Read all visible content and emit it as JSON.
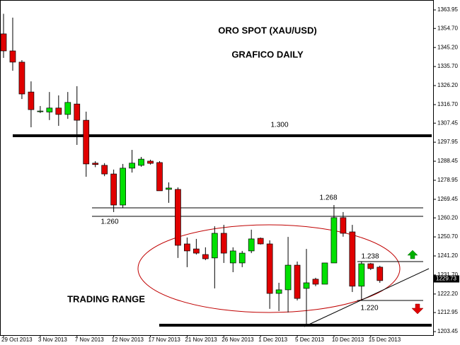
{
  "chart_data": {
    "type": "candlestick",
    "title": "ORO SPOT (XAU/USD)",
    "subtitle": "GRAFICO DAILY",
    "annotations": [
      "1.300",
      "1.268",
      "1.260",
      "1.238",
      "1.220",
      "TRADING RANGE"
    ],
    "categories": [
      "29 Oct 2013",
      null,
      null,
      null,
      "3 Nov 2013",
      null,
      null,
      null,
      "7 Nov 2013",
      null,
      null,
      null,
      "12 Nov 2013",
      null,
      null,
      null,
      "17 Nov 2013",
      null,
      null,
      null,
      "21 Nov 2013",
      null,
      null,
      null,
      "26 Nov 2013",
      null,
      null,
      null,
      "1 Dec 2013",
      null,
      null,
      null,
      "5 Dec 2013",
      null,
      null,
      null,
      "10 Dec 2013",
      null,
      null,
      null,
      "15 Dec 2013",
      null
    ],
    "open": [
      1352,
      1343.5,
      1337.9,
      1323,
      1313.5,
      1313,
      1315,
      1311.8,
      1317,
      1308.9,
      1287.5,
      1286.4,
      1282.1,
      1266.6,
      1285,
      1286.4,
      1288.5,
      1287.8,
      1274.4,
      1274.4,
      1247.2,
      1244.7,
      1241.9,
      1240.2,
      1252.5,
      1237.7,
      1237.7,
      1243.7,
      1250,
      1247.2,
      1222.5,
      1224.3,
      1236.6,
      1225,
      1229.6,
      1227.1,
      1237.7,
      1260.3,
      1253.2,
      1226.1,
      1237.3,
      1235.6
    ],
    "high": [
      1362,
      1360.1,
      1338.9,
      1328.3,
      1316,
      1323,
      1321.3,
      1323,
      1325.9,
      1313.2,
      1288.5,
      1287.5,
      1284.3,
      1287.1,
      1294.1,
      1290.6,
      1289.2,
      1288.5,
      1277.9,
      1275.4,
      1250.4,
      1249.7,
      1245.5,
      1256,
      1256.7,
      1245.5,
      1243.7,
      1254.3,
      1250.4,
      1249,
      1227.8,
      1250.7,
      1238.4,
      1244.7,
      1230.3,
      1237.7,
      1266.6,
      1263.1,
      1256.7,
      1238.4,
      1237.7,
      1236.3
    ],
    "low": [
      1340,
      1333.6,
      1319.5,
      1305.4,
      1312.5,
      1309,
      1306.1,
      1309.6,
      1296.6,
      1280.7,
      1285.5,
      1281,
      1263.1,
      1265.2,
      1282.8,
      1285.7,
      1286.8,
      1273.7,
      1267.7,
      1240.2,
      1235.6,
      1241.9,
      1239.1,
      1225,
      1237.7,
      1233.1,
      1235.6,
      1242.6,
      1246.9,
      1214.8,
      1213.7,
      1213,
      1219,
      1206.7,
      1226.1,
      1227.1,
      1237.7,
      1250.8,
      1223.2,
      1219,
      1234.2,
      1227.8
    ],
    "close": [
      1343.5,
      1337.9,
      1322,
      1314.2,
      1313.5,
      1315,
      1311.8,
      1317.8,
      1308.9,
      1287.1,
      1286.8,
      1282.1,
      1266.6,
      1285,
      1287.5,
      1289.5,
      1287.4,
      1273.7,
      1275.1,
      1246.5,
      1243.7,
      1242.6,
      1239.8,
      1252.5,
      1242.6,
      1243.7,
      1242.6,
      1249.7,
      1247.2,
      1222.5,
      1224.3,
      1236.6,
      1220,
      1227.8,
      1227.1,
      1237.7,
      1260.3,
      1252.5,
      1226.1,
      1237.3,
      1234.9,
      1228.9
    ],
    "up_color": "#00e000",
    "down_color": "#e00000",
    "last_price": 1229.73,
    "ylim": [
      1201.7,
      1368.9
    ],
    "yticks": [
      1363.95,
      {
        "value": 1354.7,
        "label": "1354.70"
      },
      {
        "value": 1345.2,
        "label": "1345.20"
      },
      {
        "value": 1335.7,
        "label": "1335.70"
      },
      {
        "value": 1326.2,
        "label": "1326.20"
      },
      {
        "value": 1316.7,
        "label": "1316.70"
      },
      1307.45,
      1297.95,
      1288.45,
      1278.95,
      1269.45,
      {
        "value": 1260.2,
        "label": "1260.20"
      },
      {
        "value": 1250.7,
        "label": "1250.70"
      },
      {
        "value": 1241.2,
        "label": "1241.20"
      },
      {
        "value": 1231.7,
        "label": "1231.70"
      },
      {
        "value": 1222.2,
        "label": "1222.20"
      },
      1212.95,
      1203.45
    ]
  }
}
